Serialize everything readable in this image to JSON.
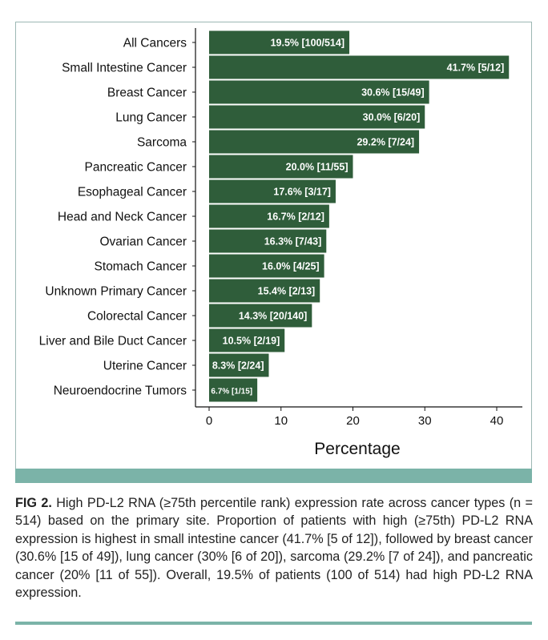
{
  "chart_data": {
    "type": "bar",
    "orientation": "horizontal",
    "categories": [
      "All Cancers",
      "Small Intestine Cancer",
      "Breast Cancer",
      "Lung Cancer",
      "Sarcoma",
      "Pancreatic Cancer",
      "Esophageal Cancer",
      "Head and Neck Cancer",
      "Ovarian Cancer",
      "Stomach Cancer",
      "Unknown Primary Cancer",
      "Colorectal Cancer",
      "Liver and Bile Duct Cancer",
      "Uterine Cancer",
      "Neuroendocrine Tumors"
    ],
    "values": [
      19.5,
      41.7,
      30.6,
      30.0,
      29.2,
      20.0,
      17.6,
      16.7,
      16.3,
      16.0,
      15.4,
      14.3,
      10.5,
      8.3,
      6.7
    ],
    "data_labels": [
      "19.5% [100/514]",
      "41.7% [5/12]",
      "30.6% [15/49]",
      "30.0% [6/20]",
      "29.2% [7/24]",
      "20.0% [11/55]",
      "17.6% [3/17]",
      "16.7% [2/12]",
      "16.3% [7/43]",
      "16.0% [4/25]",
      "15.4% [2/13]",
      "14.3% [20/140]",
      "10.5% [2/19]",
      "8.3% [2/24]",
      "6.7% [1/15]"
    ],
    "xlabel": "Percentage",
    "ylabel": "",
    "xlim": [
      0,
      43
    ],
    "xticks": [
      0,
      10,
      20,
      30,
      40
    ],
    "grid": false,
    "bar_color": "#2f5d3a"
  },
  "caption": {
    "label": "FIG 2.",
    "text": " High PD-L2 RNA (≥75th percentile rank) expression rate across cancer types (n = 514) based on the primary site. Proportion of patients with high (≥75th) PD-L2 RNA expression is highest in small intestine cancer (41.7% [5 of 12]), followed by breast cancer (30.6% [15 of 49]), lung cancer (30% [6 of 20]), sarcoma (29.2% [7 of 24]), and pancreatic cancer (20% [11 of 55]). Overall, 19.5% of patients (100 of 514) had high PD-L2 RNA expression."
  }
}
